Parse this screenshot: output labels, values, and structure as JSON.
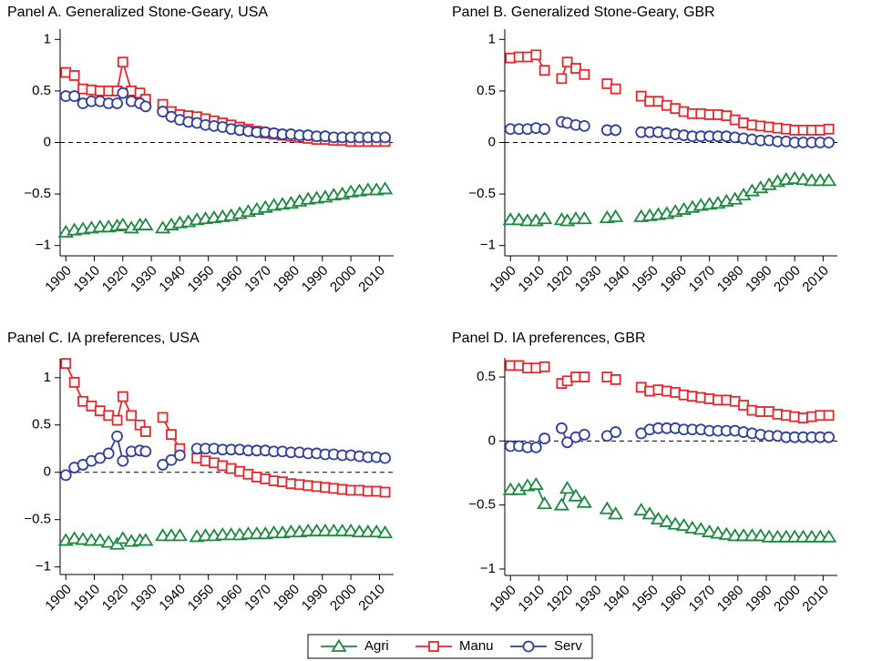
{
  "chart_data": [
    {
      "type": "line",
      "title": "Panel A. Generalized Stone-Geary, USA",
      "x": [
        1900,
        1903,
        1906,
        1909,
        1912,
        1915,
        1918,
        1920,
        1923,
        1926,
        1928,
        1931,
        1934,
        1937,
        1940,
        1943,
        1946,
        1949,
        1952,
        1955,
        1958,
        1961,
        1964,
        1967,
        1970,
        1973,
        1976,
        1979,
        1982,
        1985,
        1988,
        1991,
        1994,
        1997,
        2000,
        2003,
        2006,
        2009,
        2012
      ],
      "xlim": [
        1898,
        2015
      ],
      "xticks": [
        1900,
        1910,
        1920,
        1930,
        1940,
        1950,
        1960,
        1970,
        1980,
        1990,
        2000,
        2010
      ],
      "ylim": [
        -1.1,
        1.1
      ],
      "yticks": [
        {
          "value": -1,
          "label": "−1"
        },
        {
          "value": -0.5,
          "label": "−0.5"
        },
        0,
        0.5,
        1
      ],
      "zero_line": true,
      "series": [
        {
          "name": "Agri",
          "color": "#1b8a3e",
          "marker": "triangle",
          "values": [
            -0.87,
            -0.85,
            -0.84,
            -0.83,
            -0.82,
            -0.82,
            -0.81,
            -0.8,
            -0.83,
            -0.8,
            -0.8,
            null,
            -0.83,
            -0.8,
            -0.78,
            -0.77,
            -0.75,
            -0.74,
            -0.73,
            -0.72,
            -0.71,
            -0.69,
            -0.67,
            -0.65,
            -0.63,
            -0.61,
            -0.6,
            -0.59,
            -0.57,
            -0.55,
            -0.54,
            -0.53,
            -0.51,
            -0.5,
            -0.48,
            -0.47,
            -0.46,
            -0.46,
            -0.45
          ]
        },
        {
          "name": "Manu",
          "color": "#e8262b",
          "marker": "square",
          "values": [
            0.68,
            0.65,
            0.52,
            0.51,
            0.5,
            0.5,
            0.5,
            0.78,
            0.5,
            0.48,
            0.42,
            null,
            0.37,
            0.3,
            0.27,
            0.26,
            0.25,
            0.23,
            0.21,
            0.19,
            0.17,
            0.15,
            0.13,
            0.11,
            0.09,
            0.08,
            0.07,
            0.06,
            0.05,
            0.04,
            0.03,
            0.03,
            0.02,
            0.02,
            0.01,
            0.01,
            0.01,
            0.01,
            0.01
          ]
        },
        {
          "name": "Serv",
          "color": "#2e3f9e",
          "marker": "circle",
          "values": [
            0.45,
            0.45,
            0.38,
            0.4,
            0.4,
            0.38,
            0.38,
            0.48,
            0.4,
            0.38,
            0.35,
            null,
            0.3,
            0.25,
            0.22,
            0.2,
            0.19,
            0.17,
            0.16,
            0.15,
            0.13,
            0.12,
            0.11,
            0.1,
            0.1,
            0.09,
            0.08,
            0.08,
            0.07,
            0.07,
            0.06,
            0.06,
            0.05,
            0.05,
            0.05,
            0.05,
            0.05,
            0.05,
            0.05
          ]
        }
      ]
    },
    {
      "type": "line",
      "title": "Panel B. Generalized Stone-Geary, GBR",
      "x": [
        1900,
        1903,
        1906,
        1909,
        1912,
        1915,
        1918,
        1920,
        1923,
        1926,
        1928,
        1931,
        1934,
        1937,
        1940,
        1943,
        1946,
        1949,
        1952,
        1955,
        1958,
        1961,
        1964,
        1967,
        1970,
        1973,
        1976,
        1979,
        1982,
        1985,
        1988,
        1991,
        1994,
        1997,
        2000,
        2003,
        2006,
        2009,
        2012
      ],
      "xlim": [
        1898,
        2015
      ],
      "xticks": [
        1900,
        1910,
        1920,
        1930,
        1940,
        1950,
        1960,
        1970,
        1980,
        1990,
        2000,
        2010
      ],
      "ylim": [
        -1.1,
        1.1
      ],
      "yticks": [
        {
          "value": -1,
          "label": "−1"
        },
        {
          "value": -0.5,
          "label": "−0.5"
        },
        0,
        0.5,
        1
      ],
      "zero_line": true,
      "series": [
        {
          "name": "Agri",
          "color": "#1b8a3e",
          "marker": "triangle",
          "values": [
            -0.75,
            -0.75,
            -0.76,
            -0.76,
            -0.74,
            null,
            -0.75,
            -0.76,
            -0.74,
            -0.74,
            null,
            null,
            -0.73,
            -0.72,
            null,
            null,
            -0.72,
            -0.71,
            -0.7,
            -0.69,
            -0.67,
            -0.65,
            -0.63,
            -0.61,
            -0.6,
            -0.59,
            -0.57,
            -0.55,
            -0.51,
            -0.47,
            -0.44,
            -0.41,
            -0.38,
            -0.36,
            -0.35,
            -0.36,
            -0.37,
            -0.37,
            -0.37
          ]
        },
        {
          "name": "Manu",
          "color": "#e8262b",
          "marker": "square",
          "values": [
            0.82,
            0.83,
            0.83,
            0.85,
            0.7,
            null,
            0.62,
            0.78,
            0.72,
            0.66,
            null,
            null,
            0.57,
            0.52,
            null,
            null,
            0.45,
            0.4,
            0.4,
            0.36,
            0.33,
            0.3,
            0.28,
            0.28,
            0.27,
            0.27,
            0.26,
            0.22,
            0.19,
            0.17,
            0.16,
            0.15,
            0.14,
            0.13,
            0.12,
            0.12,
            0.12,
            0.12,
            0.13
          ]
        },
        {
          "name": "Serv",
          "color": "#2e3f9e",
          "marker": "circle",
          "values": [
            0.13,
            0.13,
            0.13,
            0.14,
            0.13,
            null,
            0.2,
            0.19,
            0.17,
            0.16,
            null,
            null,
            0.12,
            0.12,
            null,
            null,
            0.1,
            0.1,
            0.1,
            0.09,
            0.08,
            0.07,
            0.06,
            0.06,
            0.06,
            0.06,
            0.06,
            0.05,
            0.04,
            0.03,
            0.02,
            0.02,
            0.01,
            0.01,
            0.0,
            0.0,
            0.0,
            0.0,
            0.0
          ]
        }
      ]
    },
    {
      "type": "line",
      "title": "Panel C. IA preferences, USA",
      "x": [
        1900,
        1903,
        1906,
        1909,
        1912,
        1915,
        1918,
        1920,
        1923,
        1926,
        1928,
        1931,
        1934,
        1937,
        1940,
        1943,
        1946,
        1949,
        1952,
        1955,
        1958,
        1961,
        1964,
        1967,
        1970,
        1973,
        1976,
        1979,
        1982,
        1985,
        1988,
        1991,
        1994,
        1997,
        2000,
        2003,
        2006,
        2009,
        2012
      ],
      "xlim": [
        1898,
        2015
      ],
      "xticks": [
        1900,
        1910,
        1920,
        1930,
        1940,
        1950,
        1960,
        1970,
        1980,
        1990,
        2000,
        2010
      ],
      "ylim": [
        -1.08,
        1.2
      ],
      "yticks": [
        {
          "value": -1,
          "label": "−1"
        },
        {
          "value": -0.5,
          "label": "−0.5"
        },
        0,
        0.5,
        1
      ],
      "zero_line": true,
      "series": [
        {
          "name": "Agri",
          "color": "#1b8a3e",
          "marker": "triangle",
          "values": [
            -0.72,
            -0.7,
            -0.71,
            -0.72,
            -0.72,
            -0.74,
            -0.76,
            -0.7,
            -0.73,
            -0.72,
            -0.72,
            null,
            -0.67,
            -0.67,
            -0.67,
            null,
            -0.68,
            -0.67,
            -0.67,
            -0.66,
            -0.66,
            -0.66,
            -0.65,
            -0.65,
            -0.65,
            -0.64,
            -0.64,
            -0.63,
            -0.63,
            -0.62,
            -0.62,
            -0.62,
            -0.62,
            -0.62,
            -0.62,
            -0.63,
            -0.63,
            -0.63,
            -0.64
          ]
        },
        {
          "name": "Manu",
          "color": "#e8262b",
          "marker": "square",
          "values": [
            1.15,
            0.95,
            0.75,
            0.7,
            0.65,
            0.6,
            0.55,
            0.8,
            0.6,
            0.5,
            0.43,
            null,
            0.58,
            0.4,
            0.25,
            null,
            0.15,
            0.12,
            0.1,
            0.07,
            0.04,
            0.01,
            -0.02,
            -0.05,
            -0.07,
            -0.09,
            -0.1,
            -0.12,
            -0.13,
            -0.14,
            -0.15,
            -0.16,
            -0.17,
            -0.18,
            -0.19,
            -0.19,
            -0.2,
            -0.2,
            -0.21
          ]
        },
        {
          "name": "Serv",
          "color": "#2e3f9e",
          "marker": "circle",
          "values": [
            -0.03,
            0.05,
            0.08,
            0.12,
            0.15,
            0.2,
            0.38,
            0.12,
            0.22,
            0.23,
            0.22,
            null,
            0.08,
            0.13,
            0.18,
            null,
            0.25,
            0.25,
            0.25,
            0.24,
            0.24,
            0.24,
            0.23,
            0.23,
            0.23,
            0.22,
            0.22,
            0.21,
            0.21,
            0.2,
            0.2,
            0.19,
            0.19,
            0.18,
            0.18,
            0.17,
            0.16,
            0.16,
            0.15
          ]
        }
      ]
    },
    {
      "type": "line",
      "title": "Panel D. IA preferences, GBR",
      "x": [
        1900,
        1903,
        1906,
        1909,
        1912,
        1915,
        1918,
        1920,
        1923,
        1926,
        1928,
        1931,
        1934,
        1937,
        1940,
        1943,
        1946,
        1949,
        1952,
        1955,
        1958,
        1961,
        1964,
        1967,
        1970,
        1973,
        1976,
        1979,
        1982,
        1985,
        1988,
        1991,
        1994,
        1997,
        2000,
        2003,
        2006,
        2009,
        2012
      ],
      "xlim": [
        1898,
        2015
      ],
      "xticks": [
        1900,
        1910,
        1920,
        1930,
        1940,
        1950,
        1960,
        1970,
        1980,
        1990,
        2000,
        2010
      ],
      "ylim": [
        -1.05,
        0.65
      ],
      "yticks": [
        {
          "value": -1,
          "label": "−1"
        },
        {
          "value": -0.5,
          "label": "−0.5"
        },
        0,
        0.5
      ],
      "zero_line": true,
      "series": [
        {
          "name": "Agri",
          "color": "#1b8a3e",
          "marker": "triangle",
          "values": [
            -0.38,
            -0.38,
            -0.35,
            -0.34,
            -0.49,
            null,
            -0.5,
            -0.37,
            -0.43,
            -0.48,
            null,
            null,
            -0.53,
            -0.57,
            null,
            null,
            -0.54,
            -0.57,
            -0.61,
            -0.63,
            -0.65,
            -0.66,
            -0.68,
            -0.69,
            -0.71,
            -0.72,
            -0.73,
            -0.74,
            -0.74,
            -0.74,
            -0.74,
            -0.75,
            -0.75,
            -0.75,
            -0.75,
            -0.75,
            -0.75,
            -0.75,
            -0.75
          ]
        },
        {
          "name": "Manu",
          "color": "#e8262b",
          "marker": "square",
          "values": [
            0.59,
            0.59,
            0.57,
            0.57,
            0.58,
            null,
            0.45,
            0.47,
            0.5,
            0.5,
            null,
            null,
            0.5,
            0.48,
            null,
            null,
            0.42,
            0.39,
            0.4,
            0.39,
            0.38,
            0.36,
            0.35,
            0.34,
            0.33,
            0.32,
            0.32,
            0.31,
            0.28,
            0.24,
            0.23,
            0.23,
            0.21,
            0.2,
            0.19,
            0.18,
            0.19,
            0.2,
            0.2
          ]
        },
        {
          "name": "Serv",
          "color": "#2e3f9e",
          "marker": "circle",
          "values": [
            -0.04,
            -0.04,
            -0.05,
            -0.05,
            0.02,
            null,
            0.1,
            -0.01,
            0.03,
            0.05,
            null,
            null,
            0.04,
            0.07,
            null,
            null,
            0.06,
            0.09,
            0.1,
            0.1,
            0.1,
            0.09,
            0.09,
            0.09,
            0.08,
            0.08,
            0.08,
            0.08,
            0.07,
            0.06,
            0.05,
            0.04,
            0.04,
            0.03,
            0.03,
            0.03,
            0.03,
            0.03,
            0.03
          ]
        }
      ]
    }
  ]
}
